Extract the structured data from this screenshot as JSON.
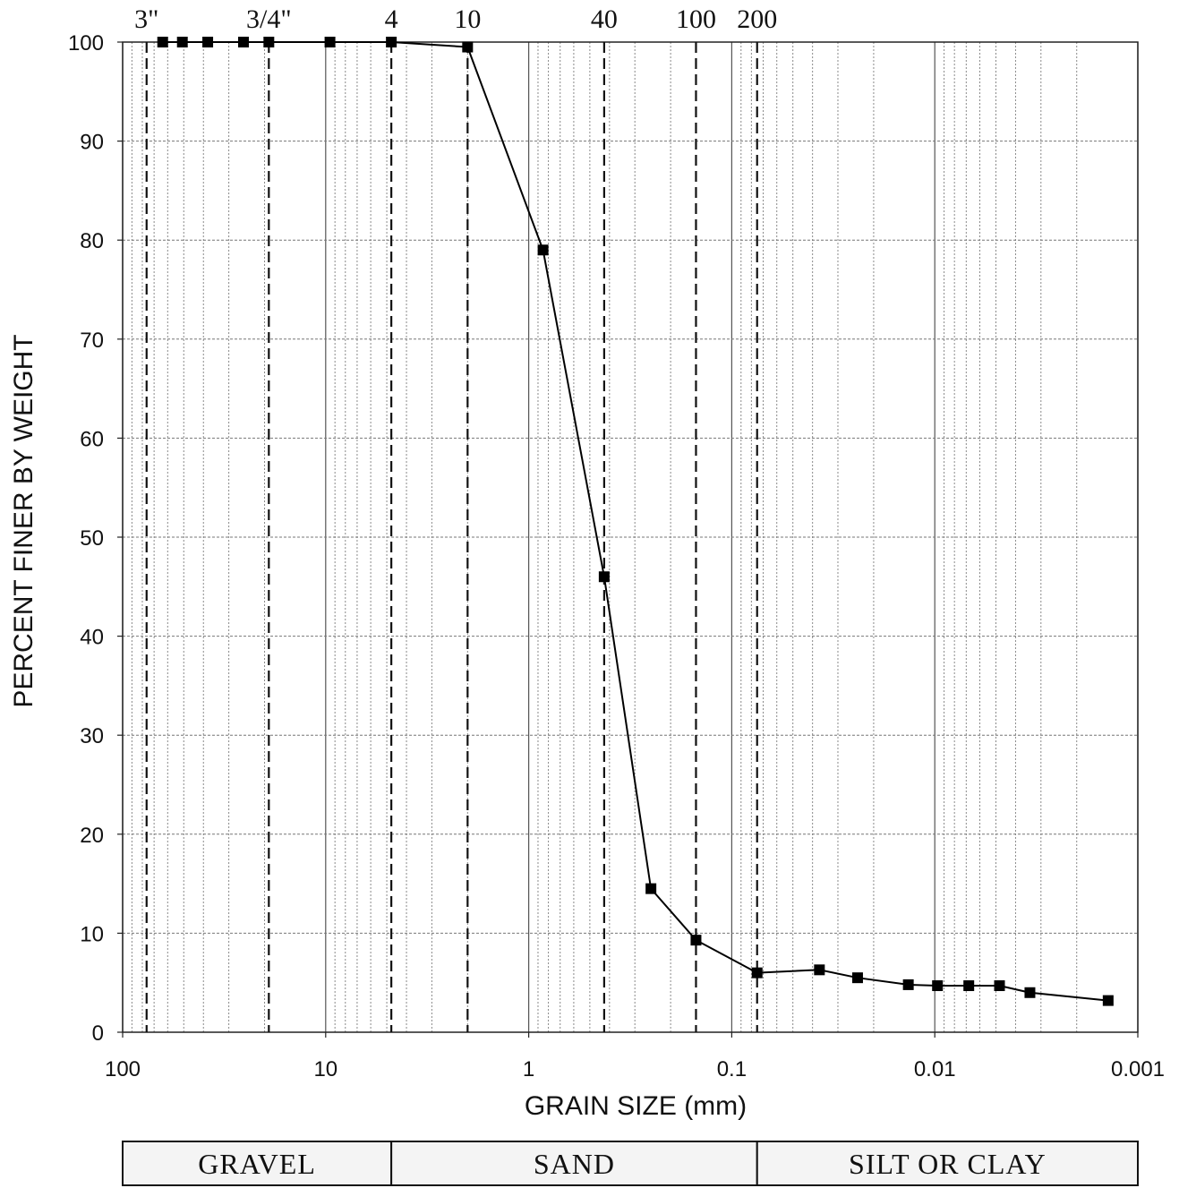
{
  "chart_data": {
    "type": "line",
    "xlabel": "GRAIN SIZE (mm)",
    "ylabel": "PERCENT FINER BY WEIGHT",
    "x_scale": "log",
    "x_reversed": true,
    "xlim": [
      100,
      0.001
    ],
    "ylim": [
      0,
      100
    ],
    "x_ticks": [
      {
        "value": 100,
        "label": "100"
      },
      {
        "value": 10,
        "label": "10"
      },
      {
        "value": 1,
        "label": "1"
      },
      {
        "value": 0.1,
        "label": "0.1"
      },
      {
        "value": 0.01,
        "label": "0.01"
      },
      {
        "value": 0.001,
        "label": "0.001"
      }
    ],
    "y_ticks": [
      0,
      10,
      20,
      30,
      40,
      50,
      60,
      70,
      80,
      90,
      100
    ],
    "grid": true,
    "sieves": [
      {
        "label": "3\"",
        "size": 76.2
      },
      {
        "label": "3/4\"",
        "size": 19.05
      },
      {
        "label": "4",
        "size": 4.75
      },
      {
        "label": "10",
        "size": 2.0
      },
      {
        "label": "40",
        "size": 0.425
      },
      {
        "label": "100",
        "size": 0.15
      },
      {
        "label": "200",
        "size": 0.075
      }
    ],
    "series": [
      {
        "x": [
          63.5,
          50.8,
          38.1,
          25.4,
          19.05,
          9.525,
          4.75,
          2.0,
          0.85,
          0.425,
          0.25,
          0.15,
          0.075,
          0.037,
          0.024,
          0.0135,
          0.0097,
          0.0068,
          0.0048,
          0.0034,
          0.0014
        ],
        "y": [
          100,
          100,
          100,
          100,
          100,
          100,
          100,
          99.5,
          79,
          46,
          14.5,
          9.3,
          6,
          6.3,
          5.5,
          4.8,
          4.7,
          4.7,
          4.7,
          4,
          3.2
        ]
      }
    ],
    "soil_bands": [
      {
        "label": "GRAVEL",
        "from": 100,
        "to": 4.75
      },
      {
        "label": "SAND",
        "from": 4.75,
        "to": 0.075
      },
      {
        "label": "SILT OR CLAY",
        "from": 0.075,
        "to": 0.001
      }
    ]
  }
}
